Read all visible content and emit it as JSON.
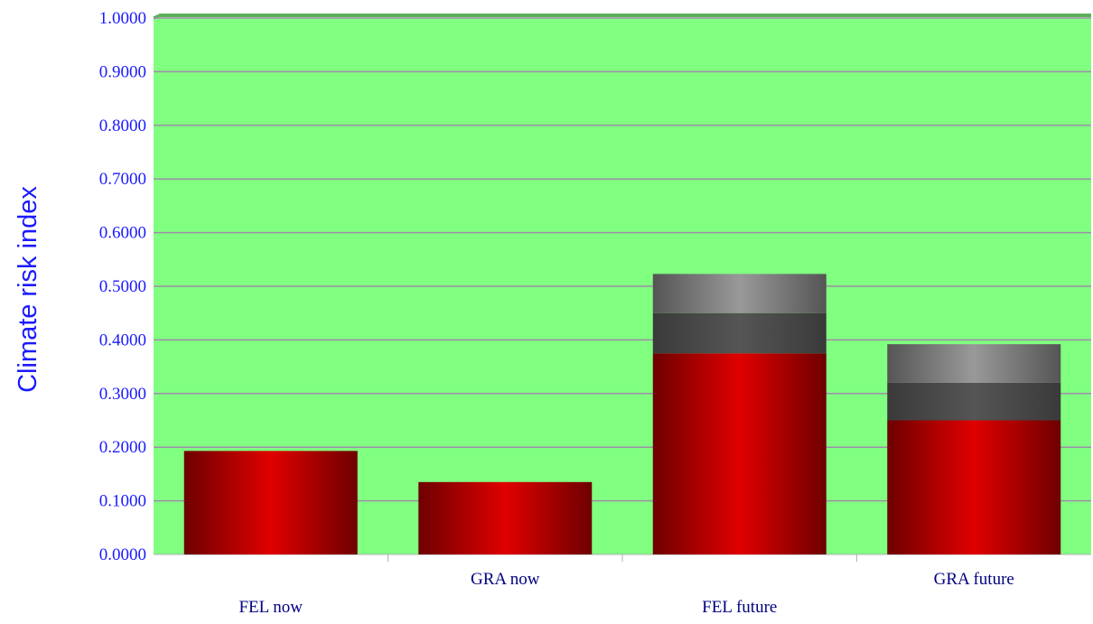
{
  "chart_data": {
    "type": "bar",
    "stacked": true,
    "categories": [
      "FEL now",
      "GRA now",
      "FEL future",
      "GRA future"
    ],
    "series": [
      {
        "values": [
          0.193,
          0.135,
          0.375,
          0.25
        ],
        "color": "#e00000"
      },
      {
        "values": [
          0.0,
          0.0,
          0.075,
          0.07
        ],
        "color": "#555555"
      },
      {
        "values": [
          0.0,
          0.0,
          0.073,
          0.072
        ],
        "color": "#777777"
      }
    ],
    "title": "",
    "xlabel": "",
    "ylabel": "Climate risk index",
    "ylim": [
      0,
      1
    ],
    "yticks": [
      "0.0000",
      "0.1000",
      "0.2000",
      "0.3000",
      "0.4000",
      "0.5000",
      "0.6000",
      "0.7000",
      "0.8000",
      "0.9000",
      "1.0000"
    ],
    "grid": true,
    "legend": "none",
    "colors": {
      "plot_background": "#80ff80",
      "gridline": "#a08ca8",
      "tick_text": "#1a1aff",
      "category_text": "#000080",
      "axis": "#b0b0b0"
    }
  }
}
